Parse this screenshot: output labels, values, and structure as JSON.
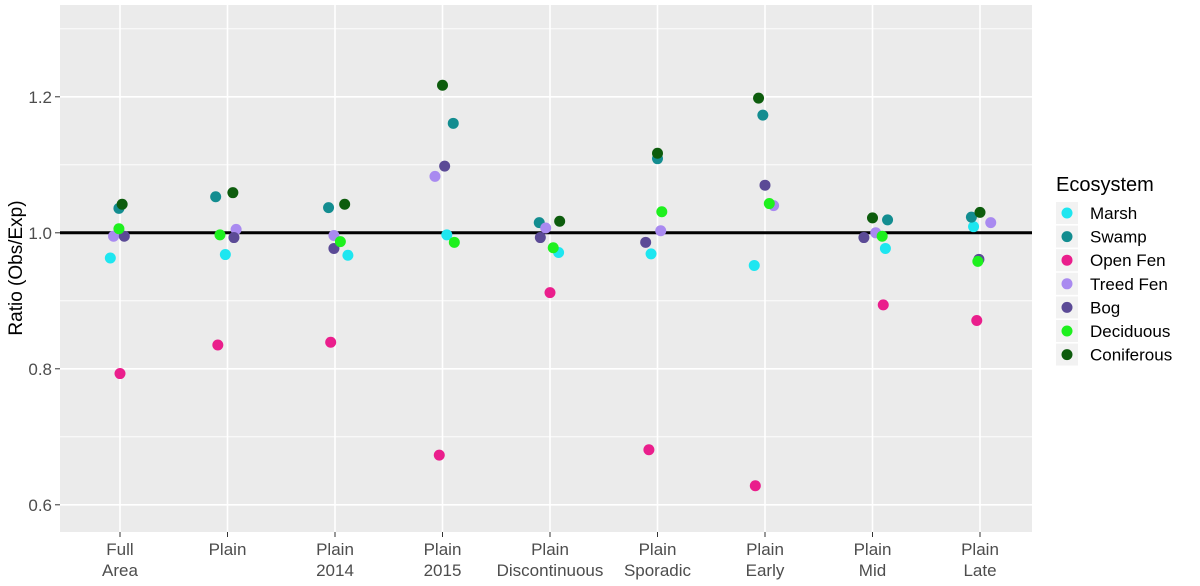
{
  "chart_data": {
    "type": "scatter",
    "ylabel": "Ratio (Obs/Exp)",
    "xlabel": "",
    "ylim": [
      0.56,
      1.335
    ],
    "y_ticks": [
      0.6,
      0.8,
      1.0,
      1.2
    ],
    "y_tick_labels": [
      "0.6",
      "0.8",
      "1.0",
      "1.2"
    ],
    "categories": [
      [
        "Full",
        "Area"
      ],
      [
        "Plain",
        ""
      ],
      [
        "Plain",
        "2014"
      ],
      [
        "Plain",
        "2015"
      ],
      [
        "Plain",
        "Discontinuous"
      ],
      [
        "Plain",
        "Sporadic"
      ],
      [
        "Plain",
        "Early"
      ],
      [
        "Plain",
        "Mid"
      ],
      [
        "Plain",
        "Late"
      ]
    ],
    "reference_line": {
      "y": 1.0,
      "color": "#000000"
    },
    "grid": true,
    "background": "#ebebeb",
    "legend": {
      "title": "Ecosystem",
      "placement": "right"
    },
    "series": [
      {
        "name": "Marsh",
        "color": "#1ee6f0",
        "values": [
          0.963,
          0.968,
          0.967,
          0.997,
          0.971,
          0.969,
          0.952,
          0.977,
          1.009
        ],
        "jitter": [
          -0.09,
          -0.02,
          0.12,
          0.04,
          0.08,
          -0.06,
          -0.1,
          0.12,
          -0.06
        ]
      },
      {
        "name": "Swamp",
        "color": "#138d90",
        "values": [
          1.036,
          1.053,
          1.037,
          1.161,
          1.015,
          1.109,
          1.173,
          1.019,
          1.023
        ],
        "jitter": [
          -0.01,
          -0.11,
          -0.06,
          0.1,
          -0.1,
          0.0,
          -0.02,
          0.14,
          -0.08
        ]
      },
      {
        "name": "Open Fen",
        "color": "#ea1e8c",
        "values": [
          0.793,
          0.835,
          0.839,
          0.673,
          0.912,
          0.681,
          0.628,
          0.894,
          0.871
        ],
        "jitter": [
          0.0,
          -0.09,
          -0.04,
          -0.03,
          0.0,
          -0.08,
          -0.09,
          0.1,
          -0.03
        ]
      },
      {
        "name": "Treed Fen",
        "color": "#a98af0",
        "values": [
          0.995,
          1.005,
          0.996,
          1.083,
          1.007,
          1.003,
          1.04,
          1.0,
          1.015
        ],
        "jitter": [
          -0.06,
          0.08,
          -0.01,
          -0.07,
          -0.04,
          0.03,
          0.08,
          0.03,
          0.1
        ]
      },
      {
        "name": "Bog",
        "color": "#5b4a96",
        "values": [
          0.995,
          0.993,
          0.977,
          1.098,
          0.993,
          0.986,
          1.07,
          0.993,
          0.961
        ],
        "jitter": [
          0.04,
          0.06,
          -0.01,
          0.02,
          -0.09,
          -0.11,
          0.0,
          -0.08,
          -0.01
        ]
      },
      {
        "name": "Deciduous",
        "color": "#1ef01e",
        "values": [
          1.006,
          0.997,
          0.987,
          0.986,
          0.978,
          1.031,
          1.043,
          0.995,
          0.958
        ],
        "jitter": [
          -0.01,
          -0.07,
          0.05,
          0.11,
          0.03,
          0.04,
          0.04,
          0.09,
          -0.02
        ]
      },
      {
        "name": "Coniferous",
        "color": "#0d5c0d",
        "values": [
          1.042,
          1.059,
          1.042,
          1.217,
          1.017,
          1.117,
          1.198,
          1.022,
          1.03
        ],
        "jitter": [
          0.02,
          0.05,
          0.09,
          0.0,
          0.09,
          0.0,
          -0.06,
          0.0,
          0.0
        ]
      }
    ]
  }
}
